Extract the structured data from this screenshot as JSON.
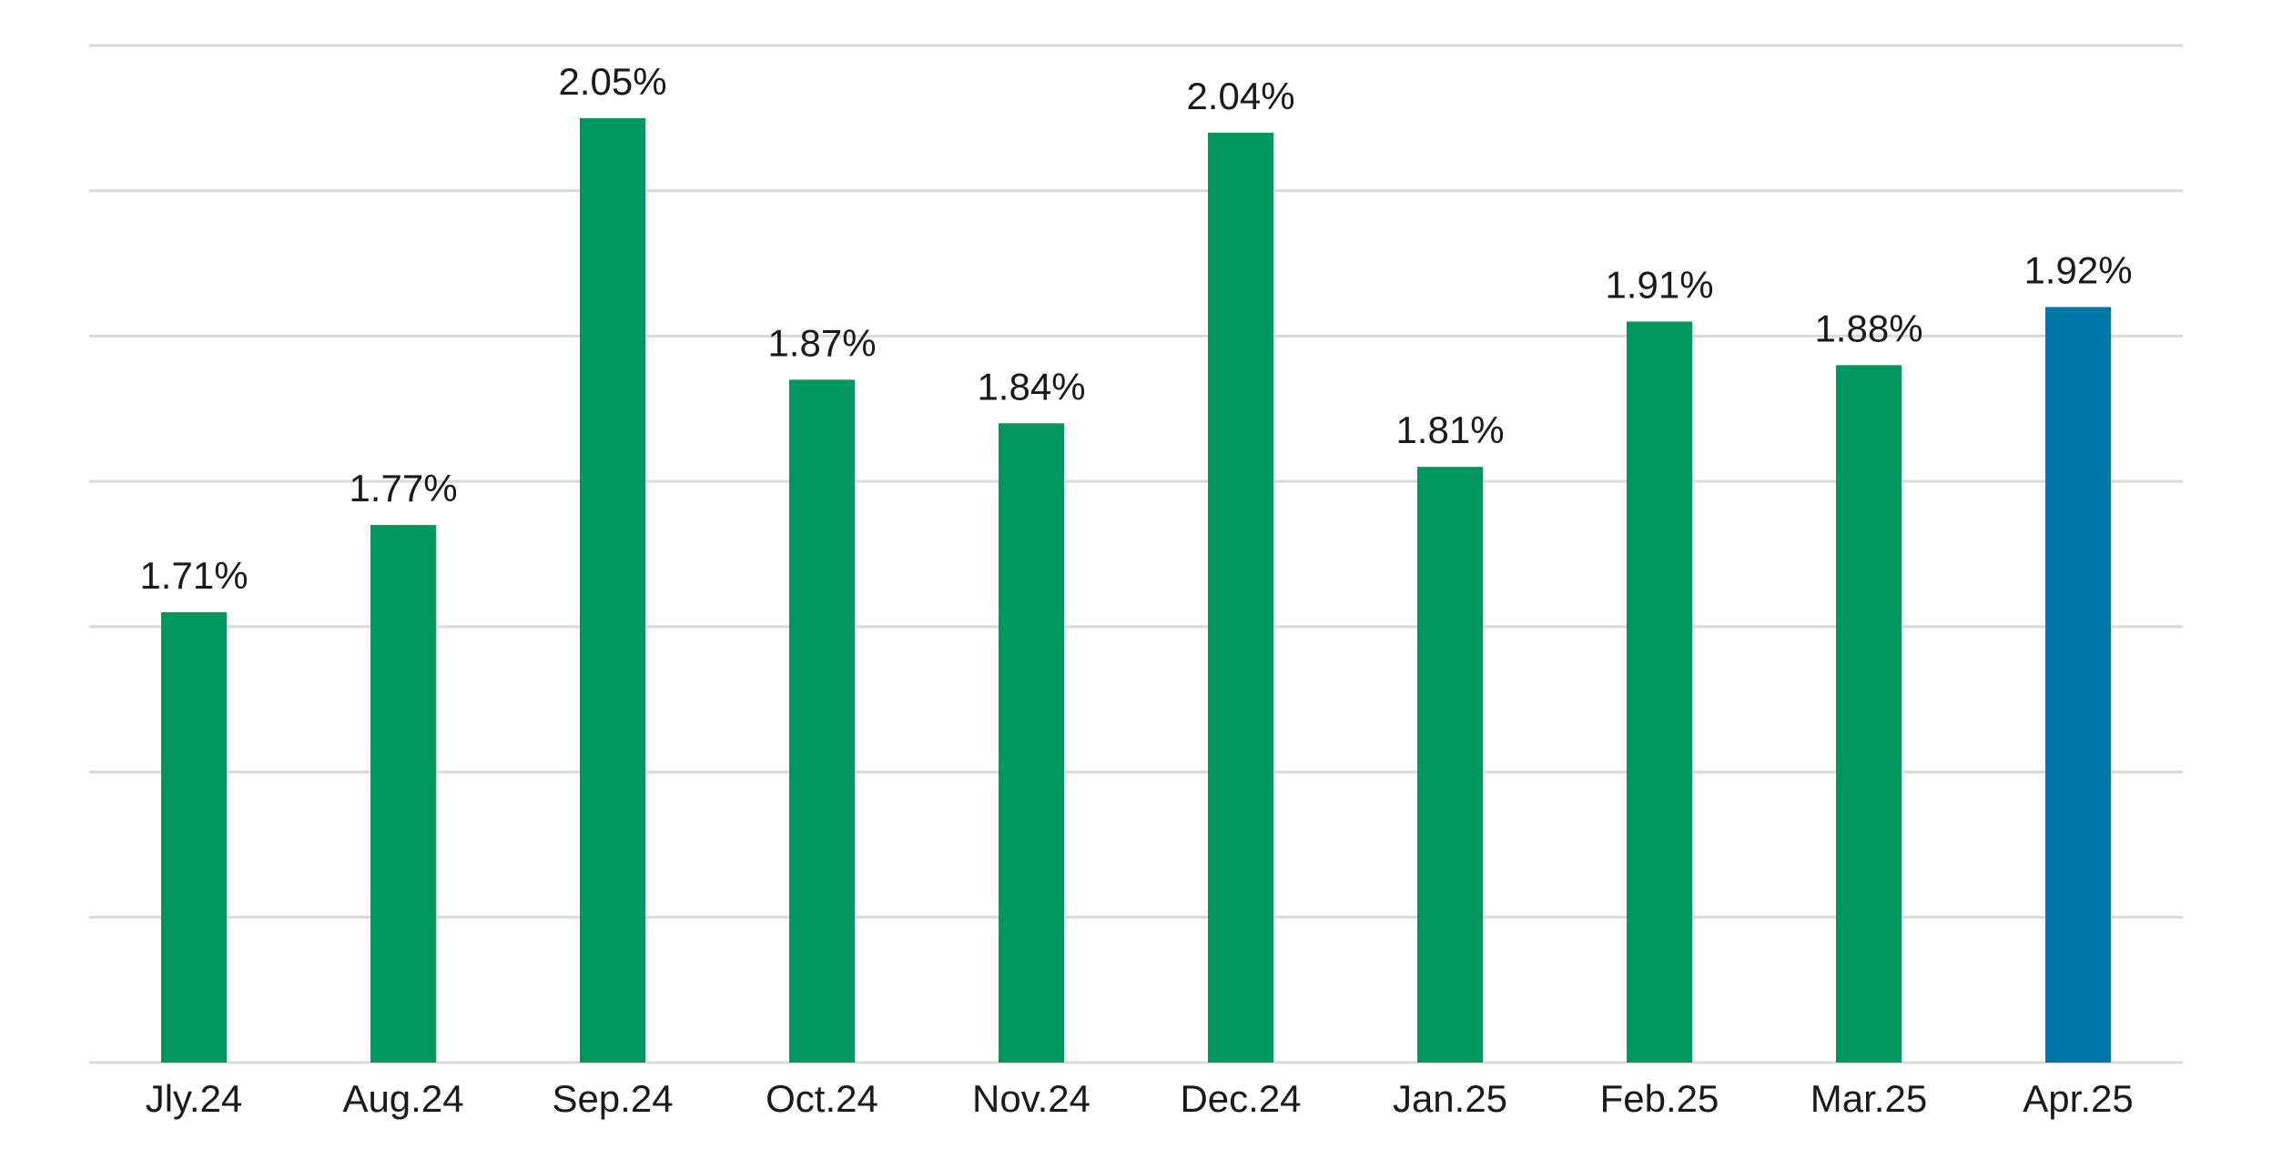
{
  "chart_data": {
    "type": "bar",
    "title": "",
    "xlabel": "",
    "ylabel": "",
    "categories": [
      "Jly.24",
      "Aug.24",
      "Sep.24",
      "Oct.24",
      "Nov.24",
      "Dec.24",
      "Jan.25",
      "Feb.25",
      "Mar.25",
      "Apr.25"
    ],
    "values": [
      1.71,
      1.77,
      2.05,
      1.87,
      1.84,
      2.04,
      1.81,
      1.91,
      1.88,
      1.92
    ],
    "data_labels": [
      "1.71%",
      "1.77%",
      "2.05%",
      "1.87%",
      "1.84%",
      "2.04%",
      "1.81%",
      "1.91%",
      "1.88%",
      "1.92%"
    ],
    "ylim": [
      1.4,
      2.1
    ],
    "y_gridlines": [
      1.4,
      1.5,
      1.6,
      1.7,
      1.8,
      1.9,
      2.0,
      2.1
    ],
    "grid": true,
    "y_tick_labels_shown": false,
    "legend": "none",
    "colors": {
      "default_bar": "#009860",
      "highlight_bar": "#0076A8",
      "gridline": "#d9d9d9",
      "text": "#1a1a1a"
    },
    "highlight_category": "Apr.25"
  }
}
